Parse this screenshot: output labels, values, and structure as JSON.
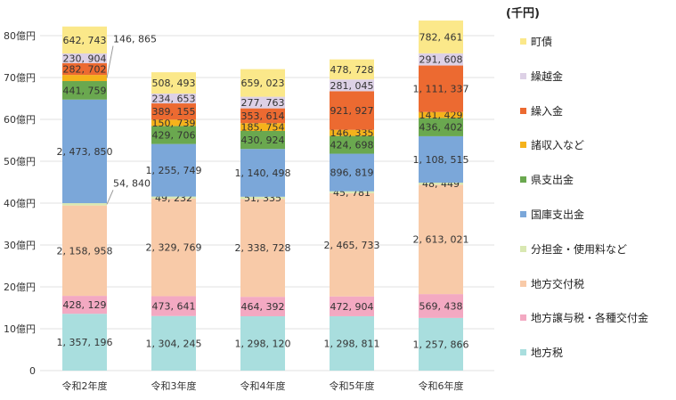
{
  "chart_data": {
    "type": "bar",
    "stacked": true,
    "unit_label": "(千円)",
    "categories": [
      "令和2年度",
      "令和3年度",
      "令和4年度",
      "令和5年度",
      "令和6年度"
    ],
    "yticks": [
      "0",
      "10億円",
      "20億円",
      "30億円",
      "40億円",
      "50億円",
      "60億円",
      "70億円",
      "80億円"
    ],
    "ylim": [
      0,
      8000000
    ],
    "series": [
      {
        "name": "地方税",
        "color": "#a9dede",
        "values": [
          1357196,
          1304245,
          1298120,
          1298811,
          1257866
        ]
      },
      {
        "name": "地方譲与税・各種交付金",
        "color": "#f3a9c2",
        "values": [
          428129,
          473641,
          464392,
          472904,
          569438
        ]
      },
      {
        "name": "地方交付税",
        "color": "#f8caa8",
        "values": [
          2158958,
          2329769,
          2338728,
          2465733,
          2613021
        ]
      },
      {
        "name": "分担金・使用料など",
        "color": "#d9e8b2",
        "values": [
          54840,
          49232,
          51335,
          45781,
          48449
        ]
      },
      {
        "name": "国庫支出金",
        "color": "#7ba7d9",
        "values": [
          2473850,
          1255749,
          1140498,
          896819,
          1108515
        ]
      },
      {
        "name": "県支出金",
        "color": "#6aa84f",
        "values": [
          441759,
          429706,
          430924,
          424698,
          436402
        ]
      },
      {
        "name": "諸収入など",
        "color": "#f5b21b",
        "values": [
          146865,
          150739,
          185754,
          146335,
          141429
        ]
      },
      {
        "name": "繰入金",
        "color": "#ec6a31",
        "values": [
          282702,
          389155,
          353614,
          921927,
          1111337
        ]
      },
      {
        "name": "繰越金",
        "color": "#ddd1e6",
        "values": [
          230904,
          234653,
          277763,
          281045,
          291608
        ]
      },
      {
        "name": "町債",
        "color": "#fbe88a",
        "values": [
          642743,
          508493,
          659023,
          478728,
          782461
        ]
      }
    ]
  }
}
